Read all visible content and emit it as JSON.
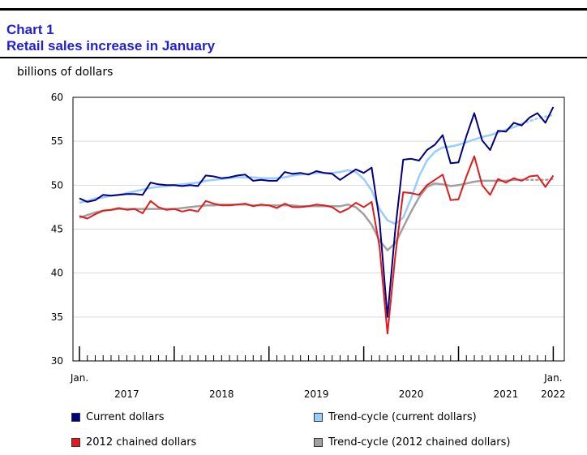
{
  "header": {
    "chart_number": "Chart 1",
    "title": "Retail sales increase in January",
    "unit_label": "billions of dollars"
  },
  "colors": {
    "current": "#000080",
    "trend_current": "#99ccff",
    "chained": "#e31a1c",
    "trend_chained": "#a0a0a0",
    "title": "#1f1fd6"
  },
  "legend": [
    {
      "label": "Current dollars",
      "color": "#000080"
    },
    {
      "label": "Trend-cycle (current dollars)",
      "color": "#99ccff"
    },
    {
      "label": "2012 chained dollars",
      "color": "#e31a1c"
    },
    {
      "label": "Trend-cycle (2012 chained dollars)",
      "color": "#a0a0a0"
    }
  ],
  "chart_data": {
    "type": "line",
    "title": "Retail sales increase in January",
    "ylabel": "billions of dollars",
    "ylim": [
      30,
      60
    ],
    "yticks": [
      30,
      35,
      40,
      45,
      50,
      55,
      60
    ],
    "grid": true,
    "x_start_label": "Jan.",
    "x_end_label": "Jan.",
    "years": [
      "2017",
      "2018",
      "2019",
      "2020",
      "2021",
      "2022"
    ],
    "x_note": "Monthly observations, January 2017 to January 2022 (61 months)",
    "series": [
      {
        "name": "Current dollars",
        "color": "#000080",
        "values": [
          48.5,
          48.1,
          48.3,
          48.9,
          48.8,
          48.9,
          49.0,
          49.0,
          48.9,
          50.3,
          50.1,
          50.0,
          50.0,
          49.9,
          50.0,
          49.9,
          51.1,
          51.0,
          50.8,
          50.9,
          51.1,
          51.2,
          50.5,
          50.6,
          50.5,
          50.5,
          51.5,
          51.3,
          51.4,
          51.2,
          51.6,
          51.4,
          51.3,
          50.6,
          51.2,
          51.8,
          51.4,
          52.0,
          46.0,
          35.0,
          45.0,
          52.9,
          53.0,
          52.8,
          54.0,
          54.6,
          55.7,
          52.5,
          52.6,
          55.6,
          58.2,
          55.1,
          54.0,
          56.2,
          56.1,
          57.1,
          56.8,
          57.7,
          58.2,
          57.1,
          58.9
        ]
      },
      {
        "name": "Trend-cycle (current dollars)",
        "color": "#99ccff",
        "values": [
          48.0,
          48.2,
          48.5,
          48.6,
          48.8,
          48.9,
          49.1,
          49.3,
          49.5,
          49.7,
          49.8,
          49.9,
          50.0,
          50.1,
          50.2,
          50.3,
          50.5,
          50.6,
          50.7,
          50.8,
          50.9,
          50.9,
          50.9,
          50.8,
          50.8,
          50.8,
          50.9,
          51.1,
          51.2,
          51.3,
          51.4,
          51.4,
          51.4,
          51.5,
          51.7,
          51.5,
          50.7,
          49.4,
          47.3,
          46.0,
          45.6,
          46.3,
          48.5,
          51.0,
          52.8,
          53.8,
          54.3,
          54.4,
          54.6,
          54.9,
          55.2,
          55.5,
          55.7,
          56.0,
          56.3,
          56.6,
          57.0,
          57.3,
          57.6,
          57.8,
          58.0
        ],
        "dotted_tail_from_index": 56
      },
      {
        "name": "2012 chained dollars",
        "color": "#e31a1c",
        "values": [
          46.5,
          46.2,
          46.7,
          47.1,
          47.2,
          47.4,
          47.2,
          47.3,
          46.8,
          48.2,
          47.5,
          47.2,
          47.3,
          47.0,
          47.2,
          47.0,
          48.2,
          47.9,
          47.7,
          47.7,
          47.8,
          47.9,
          47.6,
          47.8,
          47.7,
          47.4,
          47.9,
          47.5,
          47.5,
          47.6,
          47.8,
          47.7,
          47.5,
          46.9,
          47.3,
          48.0,
          47.5,
          48.1,
          43.0,
          33.1,
          42.0,
          49.2,
          49.1,
          48.9,
          50.0,
          50.6,
          51.2,
          48.3,
          48.4,
          51.0,
          53.3,
          50.0,
          48.9,
          50.7,
          50.3,
          50.8,
          50.5,
          51.0,
          51.1,
          49.8,
          51.1
        ]
      },
      {
        "name": "Trend-cycle (2012 chained dollars)",
        "color": "#a0a0a0",
        "values": [
          46.3,
          46.6,
          46.9,
          47.1,
          47.2,
          47.3,
          47.3,
          47.3,
          47.3,
          47.3,
          47.3,
          47.3,
          47.3,
          47.4,
          47.5,
          47.6,
          47.7,
          47.7,
          47.8,
          47.8,
          47.8,
          47.8,
          47.7,
          47.7,
          47.7,
          47.7,
          47.7,
          47.7,
          47.6,
          47.6,
          47.6,
          47.6,
          47.6,
          47.6,
          47.8,
          47.5,
          46.7,
          45.5,
          43.7,
          42.6,
          43.4,
          45.2,
          47.0,
          48.6,
          49.8,
          50.2,
          50.1,
          49.9,
          50.0,
          50.2,
          50.4,
          50.5,
          50.5,
          50.5,
          50.5,
          50.6,
          50.6,
          50.6,
          50.6,
          50.6,
          50.7
        ],
        "dotted_tail_from_index": 56
      }
    ]
  }
}
